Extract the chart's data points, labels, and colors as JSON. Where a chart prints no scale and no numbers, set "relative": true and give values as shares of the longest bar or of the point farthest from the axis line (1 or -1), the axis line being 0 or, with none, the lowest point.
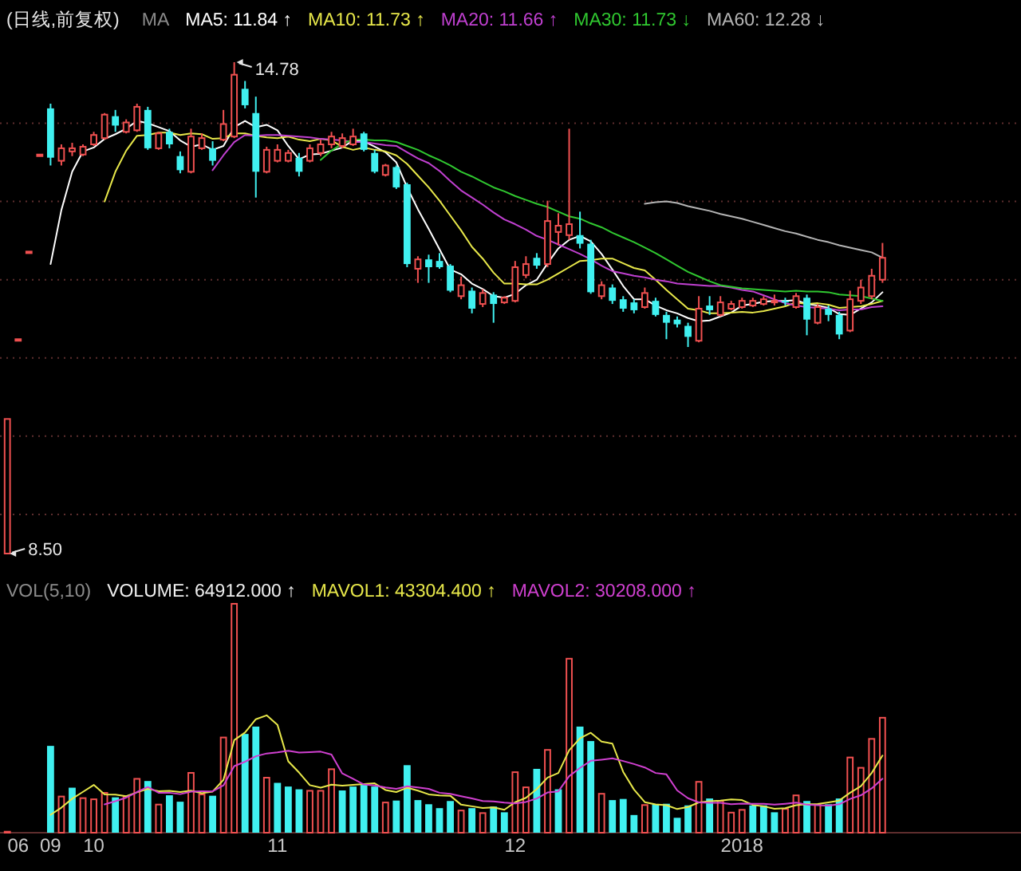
{
  "chart_data": [
    {
      "type": "candlestick",
      "title": "(日线,前复权)",
      "legend_title": "MA",
      "legend": "top",
      "categories": [
        null,
        "06",
        null,
        null,
        "09",
        null,
        null,
        null,
        "10",
        null,
        null,
        null,
        null,
        null,
        null,
        null,
        null,
        null,
        null,
        null,
        null,
        null,
        null,
        null,
        null,
        "11",
        null,
        null,
        null,
        null,
        null,
        null,
        null,
        null,
        null,
        null,
        null,
        null,
        null,
        null,
        null,
        null,
        null,
        null,
        null,
        null,
        null,
        "12",
        null,
        null,
        null,
        null,
        null,
        null,
        null,
        null,
        null,
        null,
        null,
        null,
        null,
        null,
        null,
        null,
        null,
        null,
        null,
        null,
        "2018",
        null,
        null,
        null,
        null,
        null,
        null,
        null,
        null,
        null,
        null,
        null,
        null,
        null
      ],
      "ohlc": [
        [
          8.5,
          10.22,
          8.5,
          10.22
        ],
        [
          11.24,
          11.24,
          11.24,
          11.24
        ],
        [
          12.36,
          12.36,
          12.36,
          12.36
        ],
        [
          13.6,
          13.6,
          13.6,
          13.6
        ],
        [
          14.19,
          14.25,
          13.46,
          13.56
        ],
        [
          13.52,
          13.73,
          13.46,
          13.68
        ],
        [
          13.64,
          13.75,
          13.58,
          13.68
        ],
        [
          13.6,
          13.73,
          13.58,
          13.7
        ],
        [
          13.73,
          13.89,
          13.71,
          13.85
        ],
        [
          13.81,
          14.13,
          13.79,
          14.11
        ],
        [
          14.09,
          14.17,
          13.89,
          13.97
        ],
        [
          13.89,
          14.05,
          13.87,
          14.01
        ],
        [
          13.91,
          14.25,
          13.89,
          14.21
        ],
        [
          14.17,
          14.21,
          13.66,
          13.68
        ],
        [
          13.68,
          13.89,
          13.66,
          13.87
        ],
        [
          13.89,
          13.93,
          13.68,
          13.73
        ],
        [
          13.58,
          13.64,
          13.36,
          13.4
        ],
        [
          13.38,
          13.93,
          13.36,
          13.83
        ],
        [
          13.68,
          13.87,
          13.66,
          13.81
        ],
        [
          13.68,
          13.77,
          13.46,
          13.52
        ],
        [
          13.79,
          14.17,
          13.77,
          13.99
        ],
        [
          13.83,
          14.78,
          13.81,
          14.62
        ],
        [
          14.44,
          14.54,
          14.19,
          14.23
        ],
        [
          14.13,
          14.34,
          13.05,
          13.38
        ],
        [
          13.38,
          13.7,
          13.36,
          13.66
        ],
        [
          13.52,
          13.73,
          13.5,
          13.66
        ],
        [
          13.52,
          13.66,
          13.5,
          13.62
        ],
        [
          13.56,
          13.62,
          13.32,
          13.38
        ],
        [
          13.52,
          13.73,
          13.5,
          13.68
        ],
        [
          13.62,
          13.79,
          13.58,
          13.73
        ],
        [
          13.73,
          13.89,
          13.68,
          13.83
        ],
        [
          13.71,
          13.87,
          13.68,
          13.81
        ],
        [
          13.73,
          13.93,
          13.71,
          13.83
        ],
        [
          13.87,
          13.89,
          13.64,
          13.66
        ],
        [
          13.62,
          13.66,
          13.36,
          13.38
        ],
        [
          13.34,
          13.48,
          13.32,
          13.46
        ],
        [
          13.44,
          13.46,
          13.16,
          13.18
        ],
        [
          13.22,
          13.24,
          12.16,
          12.2
        ],
        [
          12.14,
          12.3,
          11.96,
          12.26
        ],
        [
          12.26,
          12.32,
          11.96,
          12.16
        ],
        [
          12.24,
          12.34,
          12.14,
          12.16
        ],
        [
          12.18,
          12.2,
          11.84,
          11.86
        ],
        [
          11.79,
          12.04,
          11.75,
          11.93
        ],
        [
          11.86,
          11.9,
          11.57,
          11.63
        ],
        [
          11.69,
          11.88,
          11.65,
          11.83
        ],
        [
          11.81,
          11.84,
          11.45,
          11.69
        ],
        [
          11.71,
          11.79,
          11.69,
          11.77
        ],
        [
          11.73,
          12.24,
          11.71,
          12.16
        ],
        [
          12.06,
          12.3,
          12.02,
          12.2
        ],
        [
          12.28,
          12.34,
          12.14,
          12.18
        ],
        [
          12.2,
          13.01,
          12.16,
          12.75
        ],
        [
          12.61,
          12.85,
          12.44,
          12.69
        ],
        [
          12.57,
          13.93,
          12.51,
          12.71
        ],
        [
          12.57,
          12.87,
          12.4,
          12.46
        ],
        [
          12.46,
          12.51,
          11.82,
          11.84
        ],
        [
          11.79,
          11.98,
          11.75,
          11.93
        ],
        [
          11.9,
          11.94,
          11.69,
          11.73
        ],
        [
          11.75,
          11.79,
          11.59,
          11.63
        ],
        [
          11.71,
          11.75,
          11.57,
          11.61
        ],
        [
          11.65,
          11.9,
          11.63,
          11.83
        ],
        [
          11.73,
          11.77,
          11.53,
          11.55
        ],
        [
          11.55,
          11.59,
          11.24,
          11.45
        ],
        [
          11.49,
          11.53,
          11.39,
          11.43
        ],
        [
          11.41,
          11.45,
          11.14,
          11.27
        ],
        [
          11.22,
          11.79,
          11.2,
          11.63
        ],
        [
          11.67,
          11.79,
          11.55,
          11.61
        ],
        [
          11.55,
          11.79,
          11.53,
          11.71
        ],
        [
          11.63,
          11.73,
          11.61,
          11.69
        ],
        [
          11.65,
          11.77,
          11.63,
          11.73
        ],
        [
          11.67,
          11.77,
          11.65,
          11.73
        ],
        [
          11.69,
          11.79,
          11.67,
          11.75
        ],
        [
          11.71,
          11.81,
          11.67,
          11.73
        ],
        [
          11.73,
          11.77,
          11.67,
          11.71
        ],
        [
          11.65,
          11.83,
          11.63,
          11.79
        ],
        [
          11.77,
          11.81,
          11.29,
          11.49
        ],
        [
          11.45,
          11.69,
          11.43,
          11.65
        ],
        [
          11.63,
          11.67,
          11.47,
          11.55
        ],
        [
          11.55,
          11.59,
          11.24,
          11.3
        ],
        [
          11.35,
          11.86,
          11.33,
          11.75
        ],
        [
          11.73,
          12.0,
          11.69,
          11.9
        ],
        [
          11.79,
          12.14,
          11.75,
          12.05
        ],
        [
          12.0,
          12.47,
          11.96,
          12.28
        ]
      ],
      "colors": [
        "#f05050",
        "#f05050",
        "#f05050",
        "#f05050",
        "#40f0f0",
        "#f05050",
        "#f05050",
        "#f05050",
        "#f05050",
        "#f05050",
        "#40f0f0",
        "#f05050",
        "#f05050",
        "#40f0f0",
        "#f05050",
        "#40f0f0",
        "#40f0f0",
        "#f05050",
        "#f05050",
        "#40f0f0",
        "#f05050",
        "#f05050",
        "#40f0f0",
        "#40f0f0",
        "#f05050",
        "#f05050",
        "#f05050",
        "#40f0f0",
        "#f05050",
        "#f05050",
        "#f05050",
        "#f05050",
        "#f05050",
        "#40f0f0",
        "#40f0f0",
        "#f05050",
        "#40f0f0",
        "#40f0f0",
        "#f05050",
        "#40f0f0",
        "#40f0f0",
        "#40f0f0",
        "#f05050",
        "#40f0f0",
        "#f05050",
        "#40f0f0",
        "#f05050",
        "#f05050",
        "#f05050",
        "#40f0f0",
        "#f05050",
        "#f05050",
        "#f05050",
        "#40f0f0",
        "#40f0f0",
        "#f05050",
        "#40f0f0",
        "#40f0f0",
        "#40f0f0",
        "#f05050",
        "#40f0f0",
        "#40f0f0",
        "#40f0f0",
        "#40f0f0",
        "#f05050",
        "#40f0f0",
        "#f05050",
        "#f05050",
        "#f05050",
        "#f05050",
        "#f05050",
        "#f05050",
        "#40f0f0",
        "#f05050",
        "#40f0f0",
        "#f05050",
        "#40f0f0",
        "#40f0f0",
        "#f05050",
        "#f05050",
        "#f05050",
        "#f05050"
      ],
      "series": [
        {
          "type": "line",
          "name": "MA5: 11.84 ↑",
          "color": "#ffffff",
          "values": [
            null,
            null,
            null,
            null,
            12.2,
            12.89,
            13.38,
            13.64,
            13.69,
            13.8,
            13.86,
            13.93,
            14.03,
            14.0,
            13.95,
            13.9,
            13.78,
            13.7,
            13.73,
            13.66,
            13.71,
            13.95,
            14.03,
            13.95,
            13.98,
            13.91,
            13.71,
            13.54,
            13.6,
            13.61,
            13.65,
            13.69,
            13.78,
            13.77,
            13.7,
            13.63,
            13.5,
            13.18,
            12.9,
            12.65,
            12.39,
            12.13,
            12.07,
            11.95,
            11.88,
            11.79,
            11.77,
            11.82,
            11.93,
            12.0,
            12.21,
            12.4,
            12.51,
            12.56,
            12.49,
            12.33,
            12.13,
            11.92,
            11.75,
            11.75,
            11.67,
            11.61,
            11.57,
            11.51,
            11.47,
            11.48,
            11.53,
            11.58,
            11.67,
            11.69,
            11.72,
            11.73,
            11.73,
            11.74,
            11.69,
            11.67,
            11.64,
            11.56,
            11.55,
            11.63,
            11.71,
            11.84
          ]
        },
        {
          "type": "line",
          "name": "MA10: 11.73 ↑",
          "color": "#e8e84a",
          "values": [
            null,
            null,
            null,
            null,
            null,
            null,
            null,
            null,
            null,
            13.0,
            13.38,
            13.65,
            13.84,
            13.85,
            13.88,
            13.88,
            13.85,
            13.87,
            13.86,
            13.8,
            13.81,
            13.87,
            13.87,
            13.84,
            13.82,
            13.81,
            13.83,
            13.79,
            13.77,
            13.8,
            13.78,
            13.7,
            13.66,
            13.69,
            13.66,
            13.64,
            13.59,
            13.48,
            13.33,
            13.18,
            13.01,
            12.82,
            12.63,
            12.42,
            12.27,
            12.09,
            11.95,
            11.95,
            11.94,
            11.94,
            12.0,
            12.08,
            12.16,
            12.24,
            12.25,
            12.27,
            12.27,
            12.21,
            12.15,
            12.12,
            12.0,
            11.87,
            11.75,
            11.63,
            11.61,
            11.57,
            11.57,
            11.58,
            11.59,
            11.58,
            11.6,
            11.63,
            11.66,
            11.71,
            11.69,
            11.7,
            11.68,
            11.64,
            11.65,
            11.66,
            11.69,
            11.73
          ]
        },
        {
          "type": "line",
          "name": "MA20: 11.66 ↑",
          "color": "#c040d0",
          "values": [
            null,
            null,
            null,
            null,
            null,
            null,
            null,
            null,
            null,
            null,
            null,
            null,
            null,
            null,
            null,
            null,
            null,
            null,
            null,
            13.4,
            13.59,
            13.76,
            13.85,
            13.84,
            13.85,
            13.85,
            13.84,
            13.83,
            13.82,
            13.8,
            13.79,
            13.78,
            13.76,
            13.76,
            13.74,
            13.72,
            13.71,
            13.63,
            13.55,
            13.49,
            13.39,
            13.26,
            13.14,
            13.05,
            12.96,
            12.86,
            12.77,
            12.71,
            12.64,
            12.56,
            12.51,
            12.45,
            12.39,
            12.33,
            12.26,
            12.18,
            12.11,
            12.08,
            12.05,
            12.03,
            12.0,
            11.98,
            11.95,
            11.94,
            11.93,
            11.92,
            11.92,
            11.9,
            11.87,
            11.85,
            11.8,
            11.75,
            11.7,
            11.67,
            11.65,
            11.64,
            11.63,
            11.61,
            11.62,
            11.62,
            11.65,
            11.66
          ]
        },
        {
          "type": "line",
          "name": "MA30: 11.73 ↓",
          "color": "#30c830",
          "values": [
            null,
            null,
            null,
            null,
            null,
            null,
            null,
            null,
            null,
            null,
            null,
            null,
            null,
            null,
            null,
            null,
            null,
            null,
            null,
            null,
            null,
            null,
            null,
            null,
            null,
            null,
            null,
            null,
            null,
            13.53,
            13.65,
            13.74,
            13.79,
            13.79,
            13.78,
            13.78,
            13.76,
            13.71,
            13.66,
            13.59,
            13.53,
            13.46,
            13.38,
            13.32,
            13.25,
            13.18,
            13.13,
            13.07,
            13.02,
            12.97,
            12.93,
            12.87,
            12.81,
            12.78,
            12.72,
            12.67,
            12.6,
            12.54,
            12.48,
            12.41,
            12.34,
            12.26,
            12.18,
            12.1,
            12.04,
            11.98,
            11.93,
            11.91,
            11.89,
            11.88,
            11.87,
            11.86,
            11.85,
            11.86,
            11.85,
            11.85,
            11.84,
            11.81,
            11.8,
            11.79,
            11.76,
            11.73
          ]
        },
        {
          "type": "line",
          "name": "MA60: 12.28 ↓",
          "color": "#b4b4b4",
          "values": [
            null,
            null,
            null,
            null,
            null,
            null,
            null,
            null,
            null,
            null,
            null,
            null,
            null,
            null,
            null,
            null,
            null,
            null,
            null,
            null,
            null,
            null,
            null,
            null,
            null,
            null,
            null,
            null,
            null,
            null,
            null,
            null,
            null,
            null,
            null,
            null,
            null,
            null,
            null,
            null,
            null,
            null,
            null,
            null,
            null,
            null,
            null,
            null,
            null,
            null,
            null,
            null,
            null,
            null,
            null,
            null,
            null,
            null,
            null,
            12.97,
            12.99,
            13.0,
            12.98,
            12.94,
            12.91,
            12.88,
            12.84,
            12.81,
            12.78,
            12.74,
            12.7,
            12.66,
            12.62,
            12.59,
            12.55,
            12.51,
            12.48,
            12.44,
            12.41,
            12.38,
            12.35,
            12.28
          ]
        }
      ],
      "yticks": [
        {
          "value": 9,
          "label": null
        },
        {
          "value": 10,
          "label": null
        },
        {
          "value": 11,
          "label": null
        },
        {
          "value": 12,
          "label": null
        },
        {
          "value": 13,
          "label": null
        },
        {
          "value": 14,
          "label": null
        }
      ],
      "grid": "y",
      "tick_labels": false,
      "annotations": [
        "14.78",
        "8.50"
      ]
    },
    {
      "type": "bar",
      "relative": true,
      "legend_title": "VOL(5,10)",
      "legend": "top",
      "annotations": [
        "VOLUME: 64912.000 ↑"
      ],
      "categories": [
        null,
        "06",
        null,
        null,
        "09",
        null,
        null,
        null,
        "10",
        null,
        null,
        null,
        null,
        null,
        null,
        null,
        null,
        null,
        null,
        null,
        null,
        null,
        null,
        null,
        null,
        "11",
        null,
        null,
        null,
        null,
        null,
        null,
        null,
        null,
        null,
        null,
        null,
        null,
        null,
        null,
        null,
        null,
        null,
        null,
        null,
        null,
        null,
        "12",
        null,
        null,
        null,
        null,
        null,
        null,
        null,
        null,
        null,
        null,
        null,
        null,
        null,
        null,
        null,
        null,
        null,
        null,
        null,
        null,
        "2018",
        null,
        null,
        null,
        null,
        null,
        null,
        null,
        null,
        null,
        null,
        null,
        null,
        null
      ],
      "series": [
        {
          "values": [
            0.008,
            0.002,
            0.002,
            0.002,
            0.378,
            0.161,
            0.196,
            0.154,
            0.149,
            0.177,
            0.154,
            0.161,
            0.238,
            0.225,
            0.126,
            0.163,
            0.135,
            0.264,
            0.17,
            0.161,
            0.418,
            1,
            0.43,
            0.462,
            0.243,
            0.217,
            0.201,
            0.189,
            0.186,
            0.186,
            0.28,
            0.184,
            0.201,
            0.208,
            0.201,
            0.135,
            0.14,
            0.294,
            0.142,
            0.124,
            0.107,
            0.138,
            0.1,
            0.107,
            0.089,
            0.114,
            0.089,
            0.267,
            0.201,
            0.278,
            0.364,
            0.189,
            0.761,
            0.462,
            0.399,
            0.173,
            0.142,
            0.147,
            0.077,
            0.124,
            0.124,
            0.126,
            0.065,
            0.119,
            0.225,
            0.149,
            0.142,
            0.091,
            0.103,
            0.119,
            0.119,
            0.089,
            0.107,
            0.166,
            0.138,
            0.126,
            0.124,
            0.149,
            0.331,
            0.286,
            0.412,
            0.504
          ],
          "colors": [
            "#f05050",
            "#f05050",
            "#f05050",
            "#f05050",
            "#40f0f0",
            "#f05050",
            "#40f0f0",
            "#f05050",
            "#f05050",
            "#f05050",
            "#40f0f0",
            "#f05050",
            "#f05050",
            "#40f0f0",
            "#f05050",
            "#40f0f0",
            "#40f0f0",
            "#f05050",
            "#f05050",
            "#40f0f0",
            "#f05050",
            "#f05050",
            "#40f0f0",
            "#40f0f0",
            "#f05050",
            "#40f0f0",
            "#40f0f0",
            "#40f0f0",
            "#f05050",
            "#f05050",
            "#f05050",
            "#40f0f0",
            "#40f0f0",
            "#40f0f0",
            "#40f0f0",
            "#f05050",
            "#40f0f0",
            "#40f0f0",
            "#40f0f0",
            "#40f0f0",
            "#40f0f0",
            "#40f0f0",
            "#f05050",
            "#40f0f0",
            "#f05050",
            "#40f0f0",
            "#40f0f0",
            "#f05050",
            "#f05050",
            "#40f0f0",
            "#f05050",
            "#40f0f0",
            "#f05050",
            "#40f0f0",
            "#40f0f0",
            "#f05050",
            "#40f0f0",
            "#40f0f0",
            "#40f0f0",
            "#f05050",
            "#40f0f0",
            "#40f0f0",
            "#40f0f0",
            "#40f0f0",
            "#f05050",
            "#40f0f0",
            "#f05050",
            "#f05050",
            "#f05050",
            "#40f0f0",
            "#40f0f0",
            "#40f0f0",
            "#f05050",
            "#f05050",
            "#40f0f0",
            "#f05050",
            "#40f0f0",
            "#40f0f0",
            "#f05050",
            "#f05050",
            "#f05050",
            "#f05050"
          ]
        },
        {
          "type": "line",
          "name": "MAVOL1: 43304.400 ↑",
          "color": "#e8e84a",
          "values": [
            null,
            null,
            null,
            null,
            0.078,
            0.109,
            0.148,
            0.178,
            0.208,
            0.167,
            0.166,
            0.159,
            0.176,
            0.191,
            0.181,
            0.182,
            0.177,
            0.183,
            0.172,
            0.179,
            0.23,
            0.403,
            0.436,
            0.494,
            0.511,
            0.47,
            0.311,
            0.262,
            0.207,
            0.196,
            0.209,
            0.205,
            0.208,
            0.212,
            0.215,
            0.186,
            0.177,
            0.196,
            0.183,
            0.167,
            0.162,
            0.161,
            0.122,
            0.115,
            0.108,
            0.11,
            0.1,
            0.133,
            0.152,
            0.19,
            0.24,
            0.26,
            0.359,
            0.411,
            0.435,
            0.397,
            0.388,
            0.265,
            0.188,
            0.133,
            0.123,
            0.12,
            0.103,
            0.112,
            0.132,
            0.137,
            0.14,
            0.145,
            0.142,
            0.121,
            0.115,
            0.104,
            0.107,
            0.12,
            0.124,
            0.125,
            0.132,
            0.14,
            0.174,
            0.203,
            0.26,
            0.336
          ]
        },
        {
          "type": "line",
          "name": "MAVOL2: 30208.000 ↑",
          "color": "#d040d0",
          "values": [
            null,
            null,
            null,
            null,
            null,
            null,
            null,
            null,
            null,
            0.123,
            0.137,
            0.153,
            0.177,
            0.199,
            0.174,
            0.174,
            0.168,
            0.179,
            0.181,
            0.18,
            0.206,
            0.29,
            0.309,
            0.333,
            0.345,
            0.35,
            0.357,
            0.349,
            0.351,
            0.353,
            0.34,
            0.258,
            0.235,
            0.21,
            0.206,
            0.197,
            0.191,
            0.202,
            0.197,
            0.191,
            0.174,
            0.169,
            0.159,
            0.149,
            0.138,
            0.136,
            0.131,
            0.128,
            0.134,
            0.149,
            0.175,
            0.18,
            0.246,
            0.282,
            0.313,
            0.318,
            0.324,
            0.312,
            0.299,
            0.284,
            0.26,
            0.254,
            0.184,
            0.15,
            0.132,
            0.13,
            0.13,
            0.124,
            0.127,
            0.126,
            0.126,
            0.122,
            0.126,
            0.131,
            0.122,
            0.12,
            0.118,
            0.124,
            0.147,
            0.163,
            0.193,
            0.235
          ]
        }
      ],
      "tick_labels": "x"
    }
  ]
}
